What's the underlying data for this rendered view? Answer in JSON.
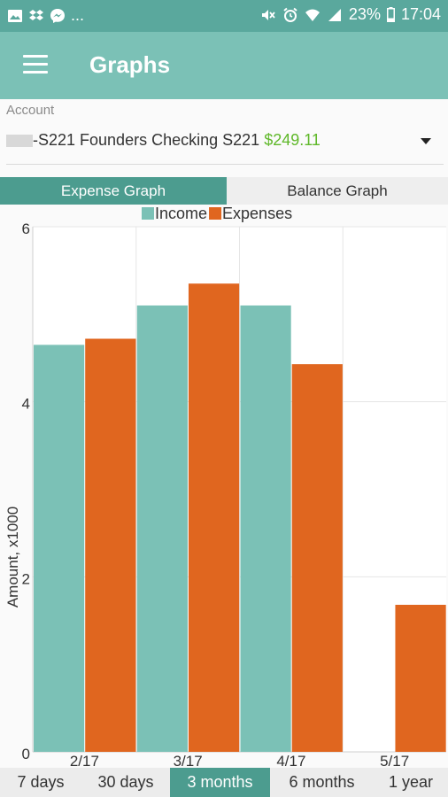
{
  "status_bar": {
    "left_icons": [
      "image-icon",
      "dropbox-icon",
      "messenger-icon"
    ],
    "more_text": "...",
    "right_icons": [
      "mute-icon",
      "alarm-icon",
      "wifi-icon",
      "signal-icon"
    ],
    "battery": "23%",
    "time": "17:04"
  },
  "app_bar": {
    "title": "Graphs"
  },
  "account": {
    "label": "Account",
    "name": "-S221 Founders Checking S221",
    "balance": "$249.11"
  },
  "graph_tabs": [
    {
      "label": "Expense Graph",
      "active": true
    },
    {
      "label": "Balance Graph",
      "active": false
    }
  ],
  "chart_data": {
    "type": "bar",
    "categories": [
      "2/17",
      "3/17",
      "4/17",
      "5/17"
    ],
    "series": [
      {
        "name": "Income",
        "color": "#7bc1b6",
        "values": [
          4.65,
          5.1,
          5.1,
          0
        ]
      },
      {
        "name": "Expenses",
        "color": "#e0661f",
        "values": [
          4.72,
          5.35,
          4.43,
          1.68
        ]
      }
    ],
    "ylabel": "Amount, x1000",
    "ylim": [
      0,
      6
    ],
    "yticks": [
      "0",
      "2",
      "4",
      "6"
    ],
    "grid": true,
    "legend_position": "top-center"
  },
  "range_options": [
    {
      "label": "7 days",
      "active": false
    },
    {
      "label": "30 days",
      "active": false
    },
    {
      "label": "3 months",
      "active": true
    },
    {
      "label": "6 months",
      "active": false
    },
    {
      "label": "1 year",
      "active": false
    }
  ],
  "colors": {
    "accent": "#4c9c8f",
    "app_bar": "#7bc1b6",
    "status_bar": "#5aa89d",
    "balance_positive": "#5fb829"
  }
}
